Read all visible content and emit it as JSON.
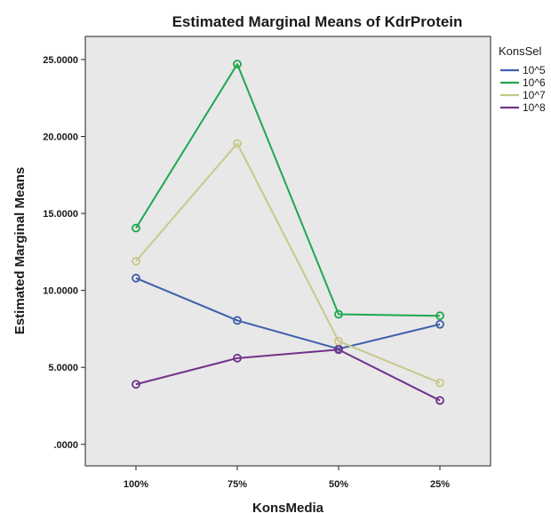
{
  "chart_data": {
    "type": "line",
    "title": "Estimated Marginal Means of KdrProtein",
    "xlabel": "KonsMedia",
    "ylabel": "Estimated Marginal Means",
    "categories": [
      "100%",
      "75%",
      "50%",
      "25%"
    ],
    "y_ticks": [
      ".0000",
      "5.0000",
      "10.0000",
      "15.0000",
      "20.0000",
      "25.0000"
    ],
    "ylim": [
      -1.4,
      26.5
    ],
    "legend_title": "KonsSel",
    "legend_position": "right",
    "grid": false,
    "plot_background": "#e8e8e8",
    "series": [
      {
        "name": "10^5",
        "color": "#3f5fad",
        "values": [
          10.8,
          8.05,
          6.2,
          7.8
        ]
      },
      {
        "name": "10^6",
        "color": "#1ea84e",
        "values": [
          14.05,
          24.7,
          8.45,
          8.35
        ]
      },
      {
        "name": "10^7",
        "color": "#c8c88c",
        "values": [
          11.9,
          19.55,
          6.7,
          4.0
        ]
      },
      {
        "name": "10^8",
        "color": "#72338a",
        "values": [
          3.9,
          5.6,
          6.15,
          2.85
        ]
      }
    ]
  }
}
